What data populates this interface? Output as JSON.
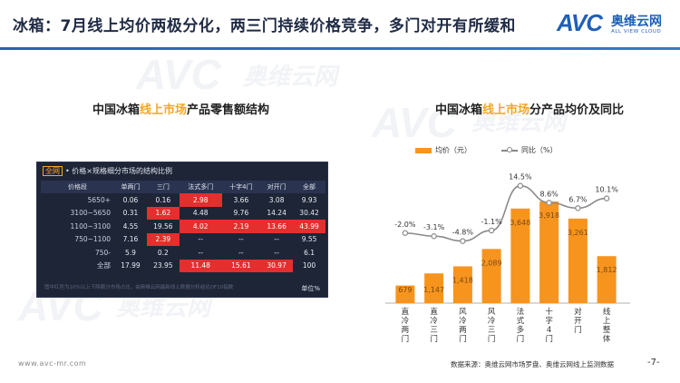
{
  "header": {
    "title": "冰箱：7月线上均价两极分化，两三门持续价格竞争，多门对开有所缓和",
    "logo_mark": "AVC",
    "logo_name": "奥维云网",
    "logo_sub": "ALL VIEW CLOUD"
  },
  "watermarks": [
    "AVC",
    "奥维云网",
    "ALL VIEW CLOUD"
  ],
  "left_panel": {
    "title_pre": "中国冰箱",
    "title_hl": "线上市场",
    "title_post": "产品零售额结构",
    "caption_tag": "全网",
    "caption_text": "• 价格×规格细分市场的结构比例",
    "columns": [
      "价格段",
      "单两门",
      "三门",
      "法式多门",
      "十字4门",
      "对开门",
      "全部"
    ],
    "rows": [
      {
        "label": "5650+",
        "cells": [
          "0.06",
          "0.16",
          "2.98",
          "3.66",
          "3.08",
          "9.93"
        ],
        "hot": [
          false,
          false,
          true,
          false,
          false,
          false
        ]
      },
      {
        "label": "3100~5650",
        "cells": [
          "0.31",
          "1.62",
          "4.48",
          "9.76",
          "14.24",
          "30.42"
        ],
        "hot": [
          false,
          true,
          false,
          false,
          false,
          false
        ]
      },
      {
        "label": "1100~3100",
        "cells": [
          "4.55",
          "19.56",
          "4.02",
          "2.19",
          "13.66",
          "43.99"
        ],
        "hot": [
          false,
          false,
          true,
          true,
          true,
          true
        ]
      },
      {
        "label": "750~1100",
        "cells": [
          "7.16",
          "2.39",
          "--",
          "--",
          "--",
          "9.55"
        ],
        "hot": [
          false,
          true,
          false,
          false,
          false,
          false
        ]
      },
      {
        "label": "750-",
        "cells": [
          "5.9",
          "0.2",
          "--",
          "--",
          "--",
          "6.1"
        ],
        "hot": [
          false,
          false,
          false,
          false,
          false,
          false
        ]
      },
      {
        "label": "全部",
        "cells": [
          "17.99",
          "23.95",
          "11.48",
          "15.61",
          "30.97",
          "100"
        ],
        "hot": [
          false,
          false,
          true,
          true,
          true,
          false
        ]
      }
    ],
    "note": "图中红色为10%以上下降额分市场占比，由奥维云网最新线上数据分析结论OF10指数",
    "unit": "单位%"
  },
  "right_panel": {
    "title_pre": "中国冰箱",
    "title_hl": "线上市场",
    "title_post": "分产品均价及同比"
  },
  "chart_data": {
    "type": "bar",
    "categories": [
      "直冷两门",
      "直冷三门",
      "风冷两门",
      "风冷三门",
      "法式多门",
      "十字4门",
      "对开门",
      "线上整体"
    ],
    "category_display": [
      [
        "直",
        "冷",
        "两",
        "门"
      ],
      [
        "直",
        "冷",
        "三",
        "门"
      ],
      [
        "风",
        "冷",
        "两",
        "门"
      ],
      [
        "风",
        "冷",
        "三",
        "门"
      ],
      [
        "法",
        "式",
        "多",
        "门"
      ],
      [
        "十",
        "字",
        "4",
        "门"
      ],
      [
        "对",
        "开",
        "门"
      ],
      [
        "线",
        "上",
        "整",
        "体"
      ]
    ],
    "series": [
      {
        "name": "均价（元）",
        "kind": "bar",
        "values": [
          679,
          1147,
          1418,
          2089,
          3648,
          3918,
          3261,
          1812
        ],
        "labels": [
          "679",
          "1,147",
          "1,418",
          "2,089",
          "3,648",
          "3,918",
          "3,261",
          "1,812"
        ]
      },
      {
        "name": "同比（%）",
        "kind": "line",
        "values": [
          -2.0,
          -3.1,
          -4.8,
          -1.1,
          14.5,
          8.6,
          6.7,
          10.1
        ],
        "labels": [
          "-2.0%",
          "-3.1%",
          "-4.8%",
          "-1.1%",
          "14.5%",
          "8.6%",
          "6.7%",
          "10.1%"
        ]
      }
    ],
    "ylim_bar": [
      0,
      4200
    ],
    "ylim_line": [
      -10,
      16
    ],
    "legend_position": "top",
    "colors": {
      "bar": "#f7941d",
      "line": "#8a8a8a",
      "bar_label_dark": "#7a4a10"
    }
  },
  "footer": {
    "url": "www.avc-mr.com",
    "source": "数据来源：奥维云网市场罗盘、奥维云网线上监测数据",
    "page": "-7-"
  }
}
